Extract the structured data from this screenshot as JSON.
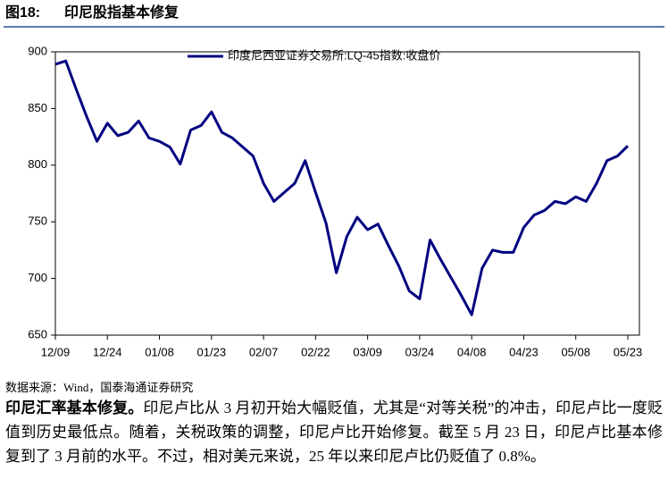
{
  "figure_label": "图18:",
  "chart_data": {
    "type": "line",
    "title": "印尼股指基本修复",
    "x": [
      "12/09",
      null,
      null,
      null,
      null,
      "12/24",
      null,
      null,
      null,
      null,
      "01/08",
      null,
      null,
      null,
      null,
      "01/23",
      null,
      null,
      null,
      null,
      "02/07",
      null,
      null,
      null,
      null,
      "02/22",
      null,
      null,
      null,
      null,
      "03/09",
      null,
      null,
      null,
      null,
      "03/24",
      null,
      null,
      null,
      null,
      "04/08",
      null,
      null,
      null,
      null,
      "04/23",
      null,
      null,
      null,
      null,
      "05/08",
      null,
      null,
      null,
      null,
      "05/23"
    ],
    "series": [
      {
        "name": "印度尼西亚证券交易所:LQ-45指数:收盘价",
        "color": "#000080",
        "values": [
          889,
          892,
          867,
          843,
          821,
          837,
          826,
          829,
          839,
          824,
          821,
          816,
          801,
          831,
          835,
          847,
          829,
          824,
          816,
          808,
          784,
          768,
          776,
          784,
          804,
          776,
          749,
          705,
          737,
          754,
          743,
          748,
          729,
          711,
          689,
          682,
          734,
          717,
          701,
          685,
          668,
          709,
          725,
          723,
          723,
          745,
          756,
          760,
          768,
          766,
          772,
          768,
          784,
          804,
          808,
          817
        ]
      }
    ],
    "ylim": [
      650,
      900
    ],
    "yticks": [
      650,
      700,
      750,
      800,
      850,
      900
    ],
    "legend": "top"
  },
  "source": "数据来源：Wind，国泰海通证券研究",
  "paragraph": {
    "lead": "印尼汇率基本修复。",
    "body": "印尼卢比从 3 月初开始大幅贬值，尤其是“对等关税”的冲击，印尼卢比一度贬值到历史最低点。随着，关税政策的调整，印尼卢比开始修复。截至 5 月 23 日，印尼卢比基本修复到了 3 月前的水平。不过，相对美元来说，25 年以来印尼卢比仍贬值了 0.8%。"
  }
}
